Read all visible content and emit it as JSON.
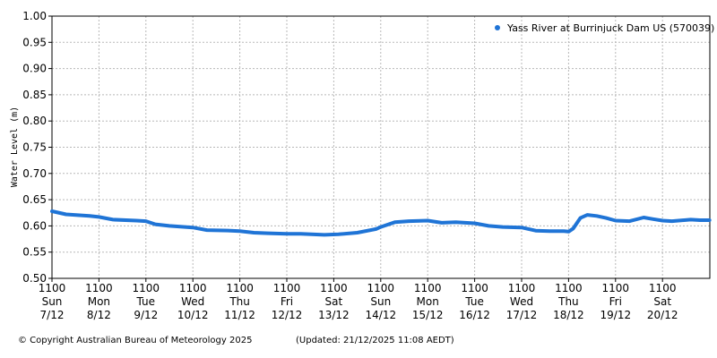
{
  "footer": {
    "copyright": "© Copyright Australian Bureau of Meteorology 2025",
    "updated": "(Updated: 21/12/2025 11:08 AEDT)"
  },
  "chart_data": {
    "type": "line",
    "title": "",
    "xlabel": "",
    "ylabel": "Water Level (m)",
    "ylim": [
      0.5,
      1.0
    ],
    "yticks": [
      "0.50",
      "0.55",
      "0.60",
      "0.65",
      "0.70",
      "0.75",
      "0.80",
      "0.85",
      "0.90",
      "0.95",
      "1.00"
    ],
    "xlim": [
      -0.04,
      14.0
    ],
    "x_unit": "days since 7/12 11:00",
    "xticks": [
      {
        "time": "1100",
        "day": "Sun",
        "date": "7/12"
      },
      {
        "time": "1100",
        "day": "Mon",
        "date": "8/12"
      },
      {
        "time": "1100",
        "day": "Tue",
        "date": "9/12"
      },
      {
        "time": "1100",
        "day": "Wed",
        "date": "10/12"
      },
      {
        "time": "1100",
        "day": "Thu",
        "date": "11/12"
      },
      {
        "time": "1100",
        "day": "Fri",
        "date": "12/12"
      },
      {
        "time": "1100",
        "day": "Sat",
        "date": "13/12"
      },
      {
        "time": "1100",
        "day": "Sun",
        "date": "14/12"
      },
      {
        "time": "1100",
        "day": "Mon",
        "date": "15/12"
      },
      {
        "time": "1100",
        "day": "Tue",
        "date": "16/12"
      },
      {
        "time": "1100",
        "day": "Wed",
        "date": "17/12"
      },
      {
        "time": "1100",
        "day": "Thu",
        "date": "18/12"
      },
      {
        "time": "1100",
        "day": "Fri",
        "date": "19/12"
      },
      {
        "time": "1100",
        "day": "Sat",
        "date": "20/12"
      }
    ],
    "grid": true,
    "legend_position": "top-right",
    "series": [
      {
        "name": "Yass River at Burrinjuck Dam US (570039)",
        "color": "#1f74d6",
        "x": [
          -0.04,
          0.3,
          0.8,
          1.0,
          1.3,
          1.8,
          2.0,
          2.2,
          2.5,
          3.0,
          3.3,
          3.8,
          4.0,
          4.3,
          4.6,
          5.0,
          5.3,
          5.8,
          6.1,
          6.5,
          6.9,
          7.0,
          7.3,
          7.6,
          8.0,
          8.3,
          8.6,
          9.0,
          9.3,
          9.6,
          10.0,
          10.3,
          10.6,
          10.9,
          11.0,
          11.1,
          11.25,
          11.4,
          11.6,
          11.8,
          12.0,
          12.3,
          12.6,
          12.8,
          13.0,
          13.2,
          13.6,
          13.8,
          14.0
        ],
        "y": [
          0.628,
          0.622,
          0.619,
          0.617,
          0.612,
          0.61,
          0.609,
          0.603,
          0.6,
          0.597,
          0.592,
          0.591,
          0.59,
          0.587,
          0.586,
          0.585,
          0.585,
          0.583,
          0.584,
          0.587,
          0.594,
          0.598,
          0.607,
          0.609,
          0.61,
          0.606,
          0.607,
          0.605,
          0.6,
          0.598,
          0.597,
          0.591,
          0.59,
          0.59,
          0.589,
          0.595,
          0.615,
          0.621,
          0.619,
          0.615,
          0.61,
          0.609,
          0.616,
          0.613,
          0.61,
          0.609,
          0.612,
          0.611,
          0.611
        ]
      }
    ]
  }
}
